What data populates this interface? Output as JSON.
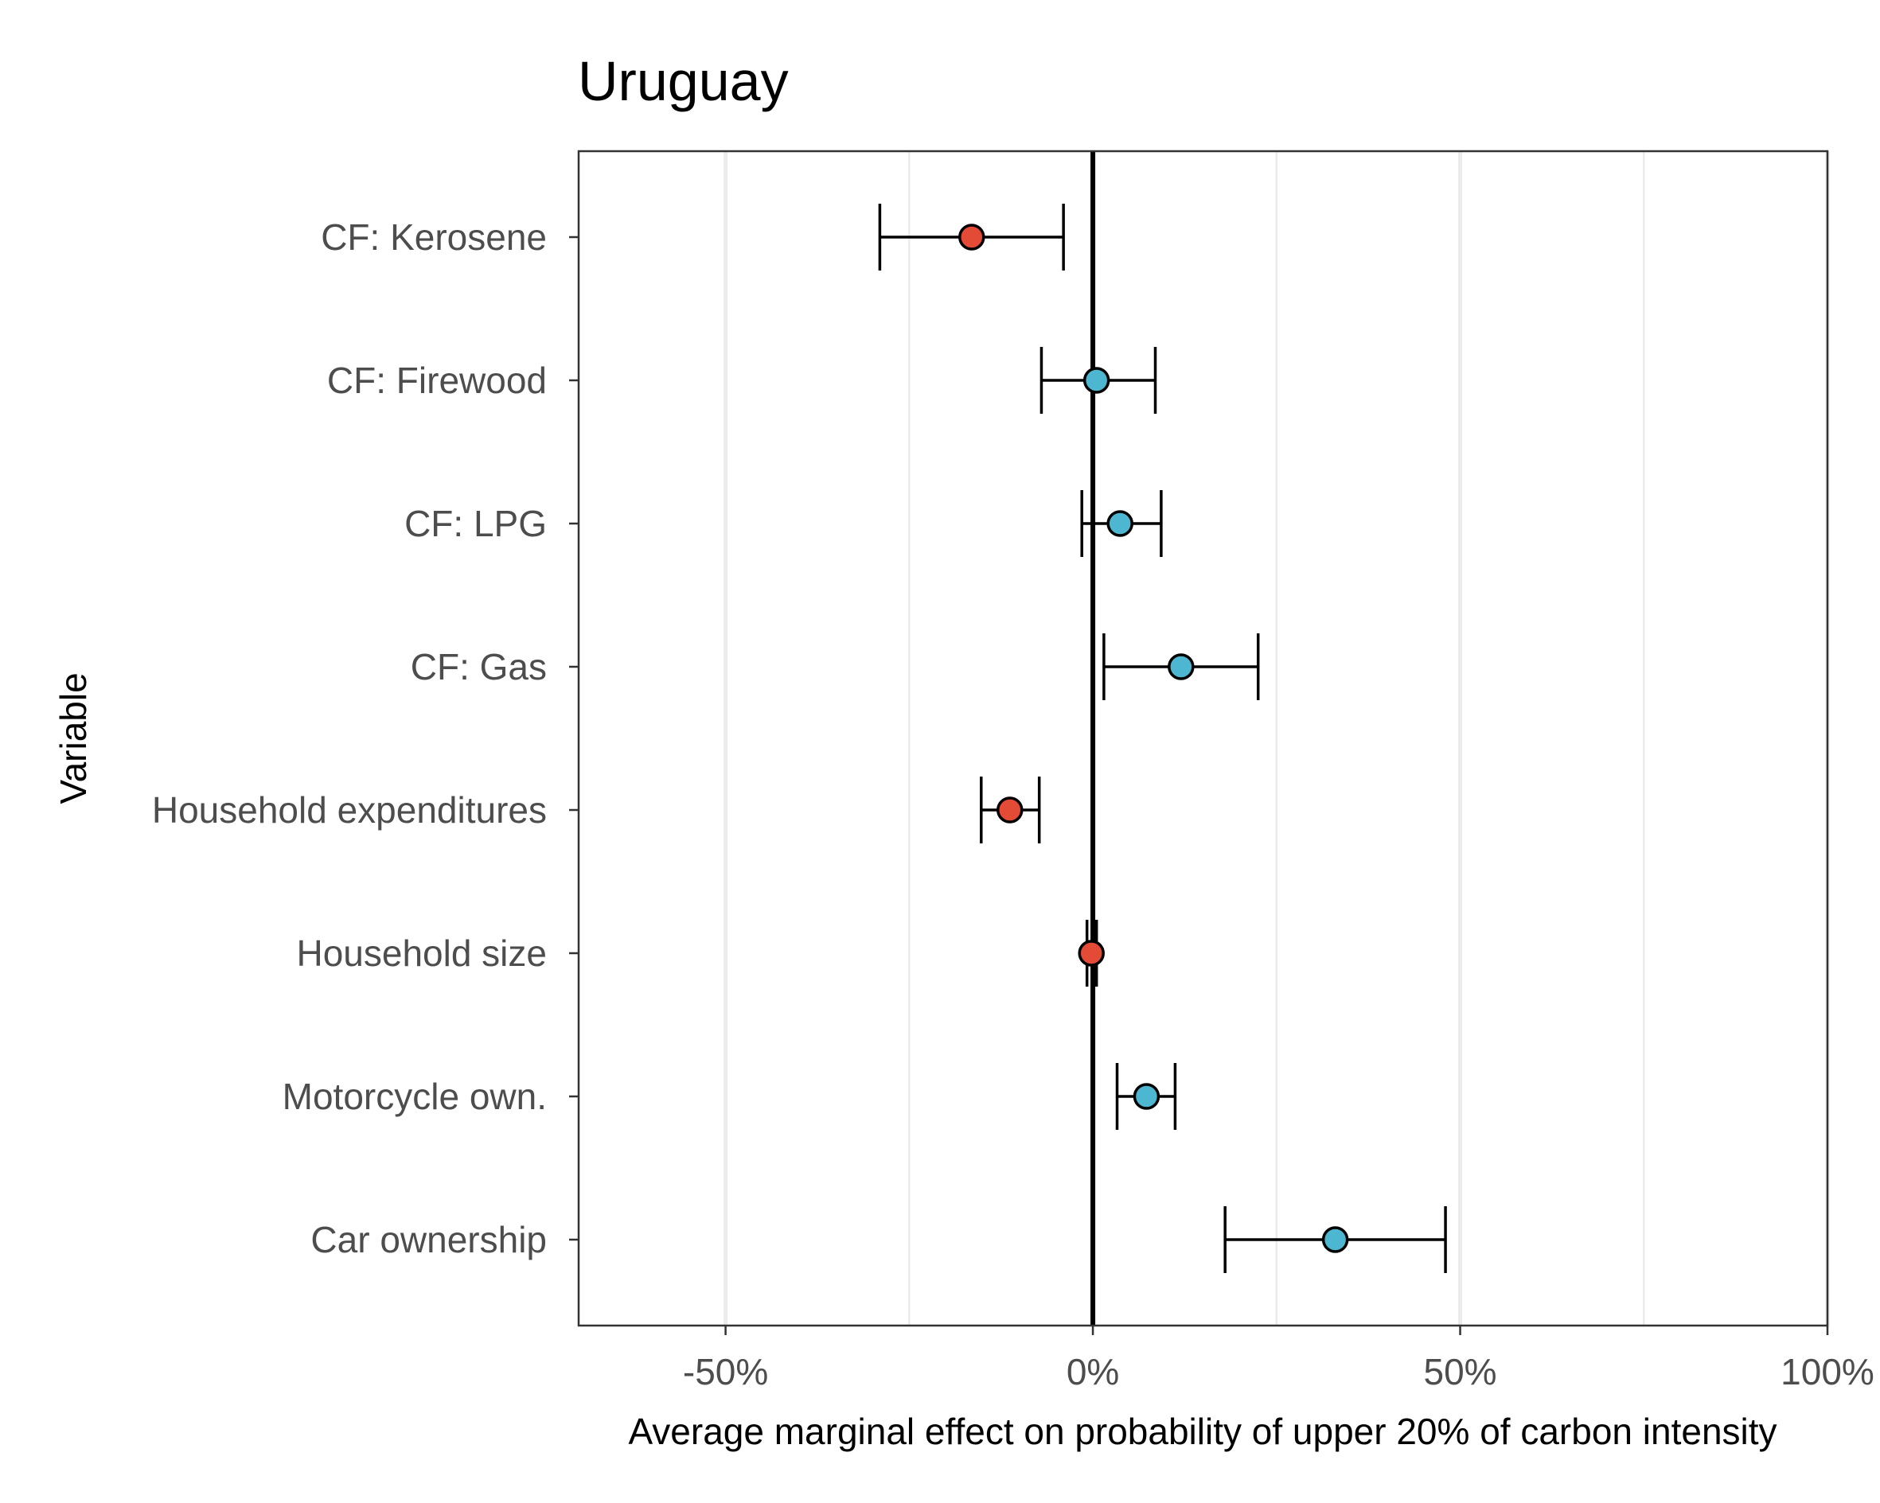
{
  "chart_data": {
    "type": "scatter",
    "title": "Uruguay",
    "xlabel": "Average marginal effect on probability of upper 20% of carbon intensity",
    "ylabel": "Variable",
    "xlim": [
      -0.7,
      1.0
    ],
    "xticks": [
      {
        "value": -0.5,
        "label": "-50%"
      },
      {
        "value": 0,
        "label": "0%"
      },
      {
        "value": 0.5,
        "label": "50%"
      },
      {
        "value": 1.0,
        "label": "100%"
      }
    ],
    "minor_grid": [
      -0.25,
      0.25,
      0.75
    ],
    "grid": true,
    "reference_line": 0,
    "legend": "none",
    "colors": {
      "negative": "#e34b36",
      "positive": "#4db6d0",
      "line": "#000000",
      "grid": "#ebebeb"
    },
    "points": [
      {
        "label": "CF: Kerosene",
        "estimate": -0.165,
        "lower": -0.29,
        "upper": -0.04,
        "sign": "negative"
      },
      {
        "label": "CF: Firewood",
        "estimate": 0.005,
        "lower": -0.07,
        "upper": 0.085,
        "sign": "positive"
      },
      {
        "label": "CF: LPG",
        "estimate": 0.037,
        "lower": -0.015,
        "upper": 0.093,
        "sign": "positive"
      },
      {
        "label": "CF: Gas",
        "estimate": 0.12,
        "lower": 0.015,
        "upper": 0.225,
        "sign": "positive"
      },
      {
        "label": "Household expenditures",
        "estimate": -0.113,
        "lower": -0.152,
        "upper": -0.073,
        "sign": "negative"
      },
      {
        "label": "Household size",
        "estimate": -0.002,
        "lower": -0.008,
        "upper": 0.005,
        "sign": "negative"
      },
      {
        "label": "Motorcycle own.",
        "estimate": 0.073,
        "lower": 0.033,
        "upper": 0.112,
        "sign": "positive"
      },
      {
        "label": "Car ownership",
        "estimate": 0.33,
        "lower": 0.18,
        "upper": 0.48,
        "sign": "positive"
      }
    ]
  }
}
